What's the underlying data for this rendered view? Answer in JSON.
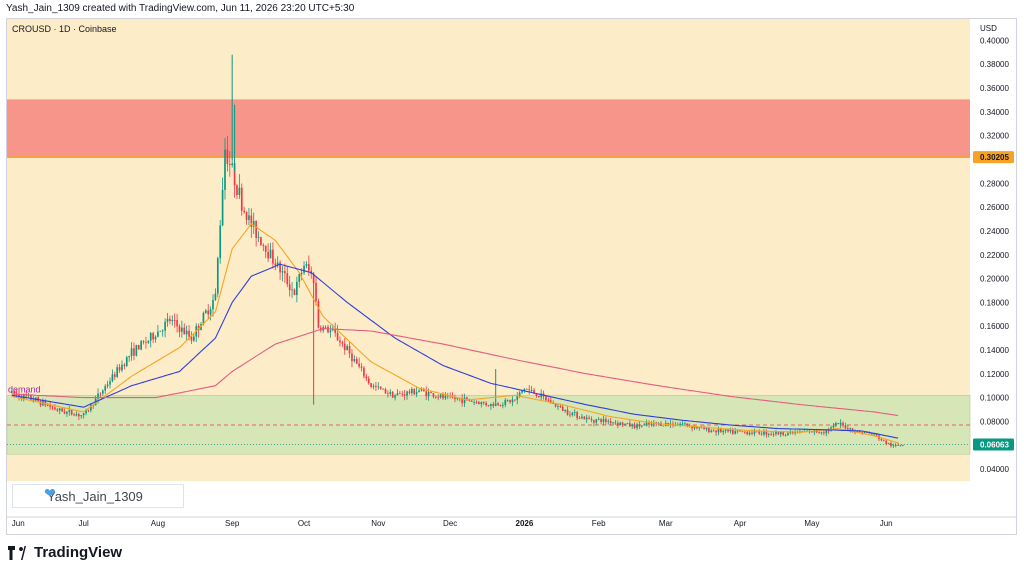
{
  "header": {
    "caption": "Yash_Jain_1309 created with TradingView.com, Jun 11, 2026 23:20 UTC+5:30",
    "symbol": "CROUSD · 1D · Coinbase",
    "currency": "USD"
  },
  "watermark": {
    "author": "Yash_Jain_1309",
    "heart_icon": "heart-icon"
  },
  "footer": {
    "brand": "TradingView",
    "logo_icon": "tradingview-logo-icon"
  },
  "colors": {
    "background": "#fdecc8",
    "supply_zone": "#f7958a",
    "demand_zone": "#d7e6b6",
    "candle_up": "#089981",
    "candle_down": "#f23645",
    "ma_fast": "#f5a623",
    "ma_mid": "#2f3fd8",
    "ma_slow": "#e35d82",
    "level_line": "#f7a125",
    "last_price_badge": "#089981"
  },
  "chart_data": {
    "type": "candlestick",
    "y_axis": {
      "ticks": [
        "0.40000",
        "0.38000",
        "0.36000",
        "0.34000",
        "0.32000",
        "0.28000",
        "0.26000",
        "0.24000",
        "0.22000",
        "0.20000",
        "0.18000",
        "0.16000",
        "0.14000",
        "0.12000",
        "0.10000",
        "0.08000",
        "0.04000"
      ],
      "ylim": [
        0.03,
        0.418
      ]
    },
    "x_axis": {
      "ticks": [
        "Jun",
        "Jul",
        "Aug",
        "Sep",
        "Oct",
        "Nov",
        "Dec",
        "2026",
        "Feb",
        "Mar",
        "Apr",
        "May",
        "Jun"
      ],
      "tick_days": [
        0,
        30,
        61,
        92,
        122,
        153,
        183,
        214,
        245,
        273,
        304,
        334,
        365
      ],
      "xlim_days": [
        -2,
        400
      ]
    },
    "supply_zone": {
      "from": 0.302,
      "to": 0.3505
    },
    "demand_zone": {
      "label": "demand",
      "from": 0.0525,
      "to": 0.102
    },
    "levels": [
      {
        "price": 0.30205,
        "label": "0.30205",
        "style": "solid"
      },
      {
        "price": 0.077,
        "style": "dashed"
      }
    ],
    "last_price": {
      "price": 0.06063,
      "label": "0.06063"
    },
    "price_path_days": [
      0,
      10,
      20,
      30,
      40,
      50,
      58,
      66,
      75,
      85,
      89,
      92,
      94,
      96,
      100,
      108,
      118,
      122,
      126,
      128,
      134,
      140,
      150,
      160,
      170,
      180,
      190,
      200,
      210,
      214,
      220,
      230,
      240,
      250,
      260,
      270,
      280,
      290,
      300,
      310,
      320,
      330,
      340,
      345,
      352,
      360,
      364,
      368,
      372
    ],
    "price_path_values": [
      0.104,
      0.098,
      0.089,
      0.085,
      0.112,
      0.138,
      0.15,
      0.165,
      0.15,
      0.185,
      0.31,
      0.29,
      0.278,
      0.262,
      0.245,
      0.22,
      0.188,
      0.212,
      0.2,
      0.16,
      0.155,
      0.14,
      0.11,
      0.102,
      0.106,
      0.1,
      0.098,
      0.094,
      0.098,
      0.108,
      0.102,
      0.09,
      0.082,
      0.08,
      0.076,
      0.078,
      0.078,
      0.073,
      0.071,
      0.071,
      0.07,
      0.071,
      0.072,
      0.078,
      0.072,
      0.069,
      0.063,
      0.059,
      0.061
    ],
    "spikes": [
      {
        "day": 92,
        "high": 0.388,
        "low": 0.3
      },
      {
        "day": 93,
        "high": 0.346,
        "low": 0.29
      },
      {
        "day": 126,
        "high": 0.205,
        "low": 0.094
      },
      {
        "day": 202,
        "high": 0.124,
        "low": 0.096
      }
    ],
    "moving_averages": [
      {
        "color_key": "ma_fast",
        "days": [
          0,
          30,
          50,
          70,
          85,
          92,
          100,
          110,
          120,
          130,
          150,
          170,
          190,
          210,
          230,
          250,
          270,
          290,
          310,
          330,
          345,
          360,
          370
        ],
        "values": [
          0.101,
          0.088,
          0.118,
          0.142,
          0.172,
          0.225,
          0.246,
          0.232,
          0.205,
          0.168,
          0.13,
          0.108,
          0.098,
          0.102,
          0.094,
          0.084,
          0.078,
          0.075,
          0.072,
          0.071,
          0.074,
          0.068,
          0.062
        ]
      },
      {
        "color_key": "ma_mid",
        "days": [
          0,
          30,
          50,
          70,
          85,
          92,
          100,
          112,
          125,
          140,
          160,
          180,
          200,
          220,
          240,
          260,
          280,
          300,
          320,
          340,
          355,
          370
        ],
        "values": [
          0.102,
          0.092,
          0.11,
          0.122,
          0.15,
          0.18,
          0.202,
          0.212,
          0.205,
          0.18,
          0.15,
          0.127,
          0.112,
          0.103,
          0.094,
          0.086,
          0.081,
          0.077,
          0.074,
          0.073,
          0.072,
          0.066
        ]
      },
      {
        "color_key": "ma_slow",
        "days": [
          0,
          30,
          60,
          85,
          92,
          110,
          130,
          150,
          180,
          210,
          240,
          270,
          300,
          330,
          360,
          370
        ],
        "values": [
          0.103,
          0.1,
          0.1,
          0.11,
          0.122,
          0.145,
          0.158,
          0.156,
          0.145,
          0.132,
          0.12,
          0.11,
          0.101,
          0.094,
          0.088,
          0.085
        ]
      }
    ]
  }
}
